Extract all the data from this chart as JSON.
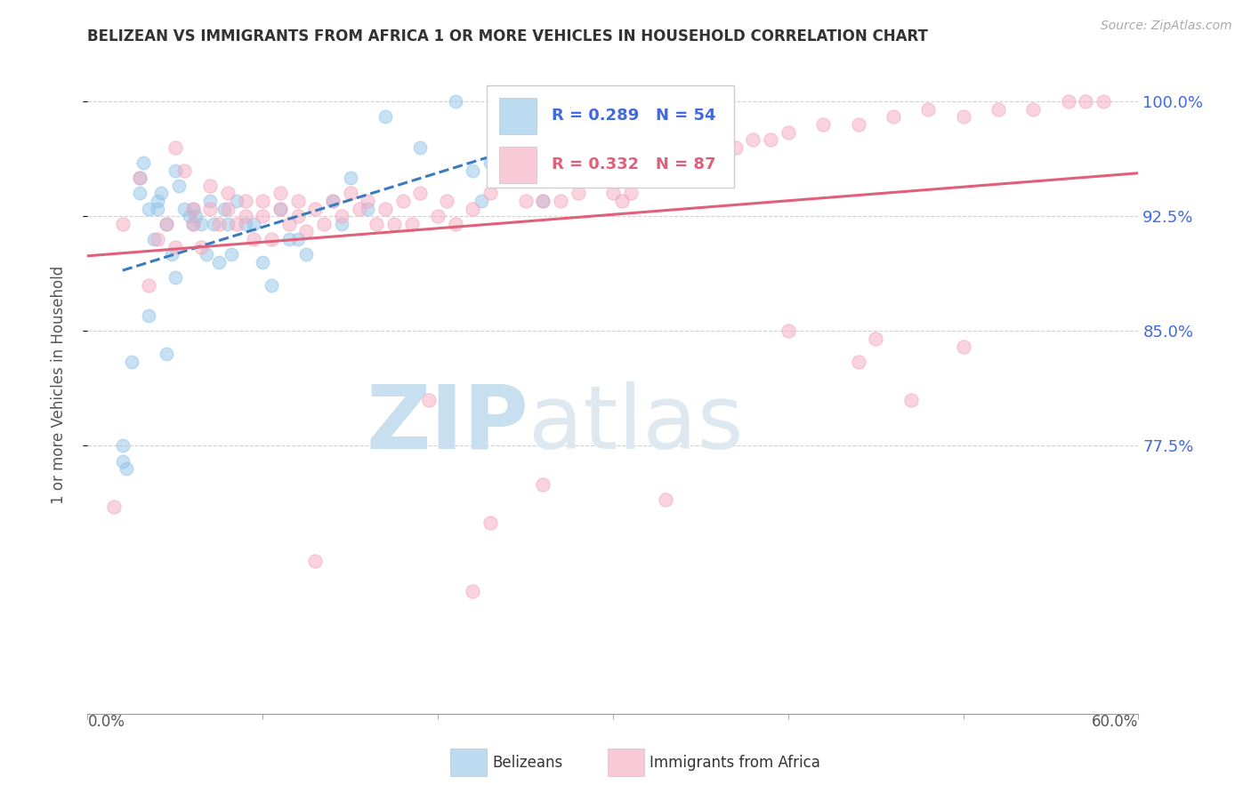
{
  "title": "BELIZEAN VS IMMIGRANTS FROM AFRICA 1 OR MORE VEHICLES IN HOUSEHOLD CORRELATION CHART",
  "source": "Source: ZipAtlas.com",
  "ylabel": "1 or more Vehicles in Household",
  "ytick_labels": [
    "100.0%",
    "92.5%",
    "85.0%",
    "77.5%"
  ],
  "ytick_values": [
    100.0,
    92.5,
    85.0,
    77.5
  ],
  "xtick_values": [
    0.0,
    10.0,
    20.0,
    30.0,
    40.0,
    50.0,
    60.0
  ],
  "xlim": [
    0.0,
    60.0
  ],
  "ylim": [
    60.0,
    103.0
  ],
  "legend_blue_r": "R = 0.289",
  "legend_blue_n": "N = 54",
  "legend_pink_r": "R = 0.332",
  "legend_pink_n": "N = 87",
  "blue_color": "#90c4e8",
  "pink_color": "#f4a8be",
  "blue_line_color": "#3a7abf",
  "pink_line_color": "#e0607a",
  "title_color": "#333333",
  "right_tick_color": "#4169E1",
  "watermark_zip_color": "#c8dff0",
  "watermark_atlas_color": "#dde8f0",
  "blue_scatter_x": [
    2.0,
    2.0,
    2.2,
    3.0,
    3.0,
    3.2,
    3.5,
    3.8,
    4.0,
    4.0,
    4.2,
    4.5,
    4.8,
    5.0,
    5.0,
    5.2,
    5.5,
    5.8,
    6.0,
    6.0,
    6.2,
    6.5,
    6.8,
    7.0,
    7.2,
    7.5,
    7.8,
    8.0,
    8.2,
    8.5,
    9.0,
    9.5,
    10.0,
    10.5,
    11.0,
    11.5,
    12.0,
    12.5,
    14.0,
    14.5,
    15.0,
    16.0,
    17.0,
    19.0,
    21.0,
    22.0,
    22.5,
    23.0,
    24.0,
    25.0,
    26.0,
    2.5,
    3.5,
    4.5
  ],
  "blue_scatter_y": [
    77.5,
    76.5,
    76.0,
    94.0,
    95.0,
    96.0,
    93.0,
    91.0,
    93.0,
    93.5,
    94.0,
    92.0,
    90.0,
    88.5,
    95.5,
    94.5,
    93.0,
    92.5,
    92.0,
    93.0,
    92.5,
    92.0,
    90.0,
    93.5,
    92.0,
    89.5,
    93.0,
    92.0,
    90.0,
    93.5,
    92.0,
    92.0,
    89.5,
    88.0,
    93.0,
    91.0,
    91.0,
    90.0,
    93.5,
    92.0,
    95.0,
    93.0,
    99.0,
    97.0,
    100.0,
    95.5,
    93.5,
    96.0,
    95.5,
    96.0,
    93.5,
    83.0,
    86.0,
    83.5
  ],
  "pink_scatter_x": [
    1.5,
    2.0,
    3.0,
    3.5,
    4.0,
    4.5,
    5.0,
    5.0,
    5.5,
    6.0,
    6.0,
    6.5,
    7.0,
    7.0,
    7.5,
    8.0,
    8.0,
    8.5,
    9.0,
    9.0,
    9.5,
    10.0,
    10.0,
    10.5,
    11.0,
    11.0,
    11.5,
    12.0,
    12.0,
    12.5,
    13.0,
    13.5,
    14.0,
    14.5,
    15.0,
    15.5,
    16.0,
    16.5,
    17.0,
    17.5,
    18.0,
    18.5,
    19.0,
    20.0,
    20.5,
    21.0,
    22.0,
    23.0,
    24.0,
    25.0,
    26.0,
    27.0,
    28.0,
    29.0,
    30.0,
    31.0,
    32.0,
    33.0,
    34.0,
    35.0,
    36.0,
    37.0,
    38.0,
    39.0,
    40.0,
    42.0,
    44.0,
    46.0,
    48.0,
    50.0,
    52.0,
    54.0,
    56.0,
    58.0,
    13.0,
    22.0,
    23.0,
    33.0,
    40.0,
    45.0,
    57.0,
    26.0,
    44.0,
    47.0,
    50.0,
    19.5,
    30.5
  ],
  "pink_scatter_y": [
    73.5,
    92.0,
    95.0,
    88.0,
    91.0,
    92.0,
    90.5,
    97.0,
    95.5,
    93.0,
    92.0,
    90.5,
    94.5,
    93.0,
    92.0,
    94.0,
    93.0,
    92.0,
    93.5,
    92.5,
    91.0,
    93.5,
    92.5,
    91.0,
    94.0,
    93.0,
    92.0,
    93.5,
    92.5,
    91.5,
    93.0,
    92.0,
    93.5,
    92.5,
    94.0,
    93.0,
    93.5,
    92.0,
    93.0,
    92.0,
    93.5,
    92.0,
    94.0,
    92.5,
    93.5,
    92.0,
    93.0,
    94.0,
    96.0,
    93.5,
    93.5,
    93.5,
    94.0,
    95.5,
    94.0,
    94.0,
    96.0,
    95.5,
    96.0,
    96.5,
    97.0,
    97.0,
    97.5,
    97.5,
    98.0,
    98.5,
    98.5,
    99.0,
    99.5,
    99.0,
    99.5,
    99.5,
    100.0,
    100.0,
    70.0,
    68.0,
    72.5,
    74.0,
    85.0,
    84.5,
    100.0,
    75.0,
    83.0,
    80.5,
    84.0,
    80.5,
    93.5
  ]
}
